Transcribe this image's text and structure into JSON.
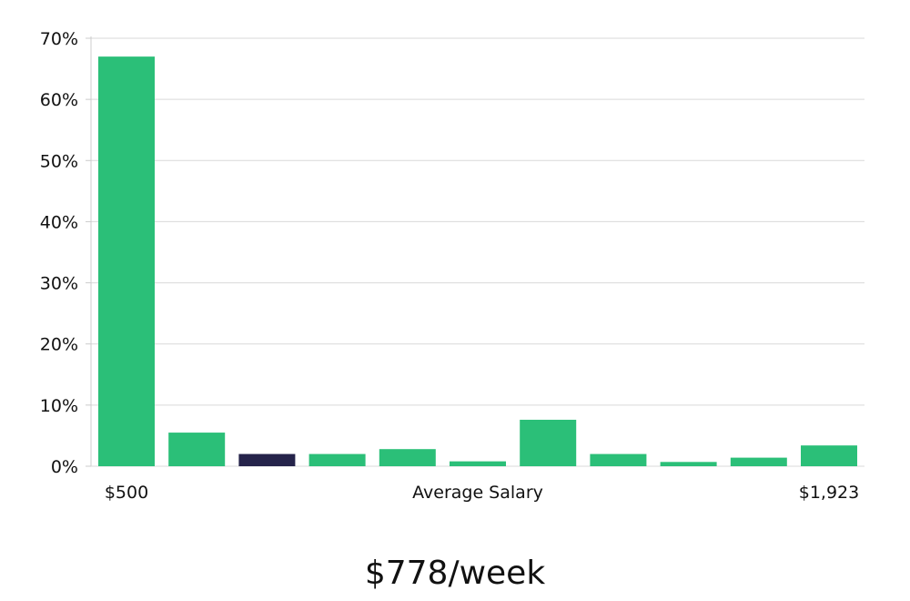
{
  "chart_data": {
    "type": "bar",
    "categories": [
      "$500",
      "",
      "",
      "",
      "",
      "",
      "",
      "",
      "",
      "",
      "$1,923"
    ],
    "values": [
      67,
      5.5,
      2,
      2,
      2.8,
      0.8,
      7.6,
      2,
      0.7,
      1.4,
      3.4
    ],
    "highlight_index": 2,
    "xlabel": "Average Salary",
    "ylabel": "",
    "ylim": [
      0,
      70
    ],
    "yticks": [
      0,
      10,
      20,
      30,
      40,
      50,
      60,
      70
    ],
    "ytick_labels": [
      "0%",
      "10%",
      "20%",
      "30%",
      "40%",
      "50%",
      "60%",
      "70%"
    ],
    "x_end_labels": {
      "left": "$500",
      "right": "$1,923"
    },
    "grid": true,
    "colors": {
      "bar": "#2bbf78",
      "bar_highlight": "#25234a",
      "grid": "#d9d9d9",
      "axis": "#cccccc"
    }
  },
  "caption": "$778/week"
}
